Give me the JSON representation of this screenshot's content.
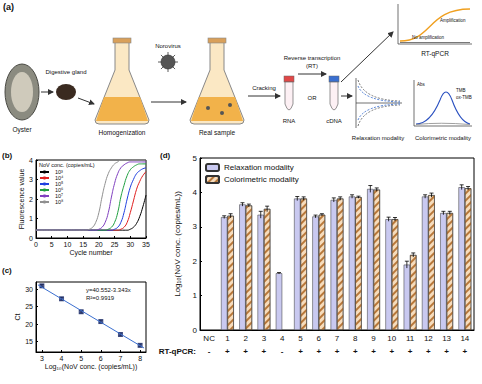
{
  "diagram": {
    "panel": "(a)",
    "labels": {
      "oyster": "Oyster",
      "gland": "Digestive gland",
      "virus": "Norovirus",
      "homogenization": "Homogenization",
      "sample": "Real sample",
      "cracking": "Cracking",
      "rt": [
        "Reverse transcription",
        "(RT)"
      ],
      "rna": "RNA",
      "or": "OR",
      "cdna": "cDNA",
      "qpcr": "RT-qPCR",
      "amp": "Amplification",
      "noamp": "No amplification",
      "relax": "Relaxation modality",
      "colorimetric": "Colorimetric modality",
      "abs": "Abs",
      "tmb": "TMB",
      "oxtmb": "ox-TMB"
    }
  },
  "chart_data": [
    {
      "type": "line",
      "title": "(b)",
      "x_label": "Cycle number",
      "y_label": "Fluorescence value",
      "legend_title": "NoV conc. (copies/mL)",
      "legend": "upper left",
      "grid": false,
      "x": [
        0,
        5,
        10,
        11,
        12,
        13,
        14,
        15,
        16,
        17,
        18,
        19,
        20,
        21,
        22,
        23,
        24,
        25,
        26,
        27,
        28,
        29,
        30,
        31,
        32,
        33,
        34,
        35
      ],
      "series": [
        {
          "name": "10³",
          "color": "#000000",
          "values": [
            0.4,
            0.4,
            0.4,
            0.4,
            0.4,
            0.4,
            0.4,
            0.4,
            0.4,
            0.4,
            0.4,
            0.4,
            0.4,
            0.4,
            0.4,
            0.4,
            0.4,
            0.4,
            0.4,
            0.4,
            0.4,
            0.4,
            0.45,
            0.55,
            0.75,
            1.1,
            1.6,
            2.2
          ]
        },
        {
          "name": "10⁴",
          "color": "#e02020",
          "values": [
            0.4,
            0.4,
            0.4,
            0.4,
            0.4,
            0.4,
            0.4,
            0.4,
            0.4,
            0.4,
            0.4,
            0.4,
            0.4,
            0.4,
            0.4,
            0.4,
            0.4,
            0.4,
            0.4,
            0.45,
            0.55,
            0.8,
            1.3,
            1.9,
            2.5,
            2.9,
            3.2,
            3.4
          ]
        },
        {
          "name": "10⁵",
          "color": "#2040e0",
          "values": [
            0.4,
            0.4,
            0.4,
            0.4,
            0.4,
            0.4,
            0.4,
            0.4,
            0.4,
            0.4,
            0.4,
            0.4,
            0.4,
            0.4,
            0.4,
            0.4,
            0.4,
            0.45,
            0.55,
            0.8,
            1.3,
            2.0,
            2.6,
            3.0,
            3.3,
            3.45,
            3.55,
            3.6
          ]
        },
        {
          "name": "10⁶",
          "color": "#20a040",
          "values": [
            0.4,
            0.4,
            0.4,
            0.4,
            0.4,
            0.4,
            0.4,
            0.4,
            0.4,
            0.4,
            0.4,
            0.4,
            0.4,
            0.4,
            0.4,
            0.45,
            0.55,
            0.8,
            1.3,
            2.1,
            2.7,
            3.2,
            3.5,
            3.65,
            3.75,
            3.8,
            3.8,
            3.8
          ]
        },
        {
          "name": "10⁷",
          "color": "#8040c0",
          "values": [
            0.4,
            0.4,
            0.4,
            0.4,
            0.4,
            0.4,
            0.4,
            0.4,
            0.4,
            0.4,
            0.4,
            0.4,
            0.45,
            0.55,
            0.8,
            1.3,
            2.1,
            2.8,
            3.3,
            3.6,
            3.75,
            3.85,
            3.9,
            3.9,
            3.9,
            3.9,
            3.9,
            3.9
          ]
        },
        {
          "name": "10⁸",
          "color": "#909090",
          "values": [
            0.4,
            0.4,
            0.4,
            0.4,
            0.4,
            0.4,
            0.4,
            0.4,
            0.4,
            0.45,
            0.55,
            0.8,
            1.3,
            2.1,
            2.8,
            3.3,
            3.6,
            3.8,
            3.9,
            4.0,
            4.0,
            4.0,
            4.0,
            4.0,
            4.0,
            4.0,
            4.0,
            4.0
          ]
        }
      ],
      "xlim": [
        0,
        35
      ],
      "xticks": [
        0,
        5,
        10,
        15,
        20,
        25,
        30,
        35
      ],
      "ylim": [
        0,
        4
      ],
      "yticks": [
        0,
        1,
        2,
        3,
        4
      ]
    },
    {
      "type": "scatter",
      "title": "(c)",
      "x_label": "Log₁₀(NoV conc. (copies/mL))",
      "y_label": "Ct",
      "grid": false,
      "marker": "square",
      "color": "#1f2f6f",
      "x": [
        3,
        4,
        5,
        6,
        7,
        8
      ],
      "values": [
        30.9,
        27.2,
        23.5,
        20.7,
        17.0,
        13.9
      ],
      "errors": [
        0.4,
        0.4,
        0.4,
        0.4,
        0.4,
        0.4
      ],
      "fit": {
        "color": "#3b6fd0",
        "x": [
          2.8,
          8.2
        ],
        "values": [
          31.19,
          13.14
        ]
      },
      "annotations": [
        "y=40.552-3.343x",
        "R²=0.9919"
      ],
      "xlim": [
        2.7,
        8.3
      ],
      "xticks": [
        3,
        4,
        5,
        6,
        7,
        8
      ],
      "ylim": [
        12,
        32
      ],
      "yticks": [
        15,
        20,
        25,
        30
      ]
    },
    {
      "type": "bar",
      "title": "(d)",
      "y_label": "Log₁₀(NoV conc. (copies/mL))",
      "legend": "upper left",
      "grid": false,
      "categories": [
        "NC",
        "1",
        "2",
        "3",
        "4",
        "5",
        "6",
        "7",
        "8",
        "9",
        "10",
        "11",
        "12",
        "13",
        "14"
      ],
      "series": [
        {
          "name": "Relaxation modality",
          "color": "#c9c9f0",
          "values": [
            null,
            3.28,
            3.65,
            3.35,
            1.65,
            3.82,
            3.3,
            3.78,
            3.88,
            4.1,
            3.22,
            1.9,
            3.88,
            3.4,
            4.15
          ],
          "errors": [
            null,
            0.04,
            0.05,
            0.1,
            0.02,
            0.06,
            0.04,
            0.06,
            0.05,
            0.1,
            0.06,
            0.1,
            0.05,
            0.05,
            0.07
          ]
        },
        {
          "name": "Colorimetric modality",
          "color": "#f6dcbc",
          "values": [
            null,
            3.32,
            3.62,
            3.52,
            null,
            3.82,
            3.35,
            3.82,
            3.86,
            4.08,
            3.22,
            2.18,
            3.92,
            3.4,
            4.12
          ],
          "errors": [
            null,
            0.06,
            0.04,
            0.08,
            null,
            0.05,
            0.03,
            0.05,
            0.03,
            0.05,
            0.05,
            0.06,
            0.06,
            0.05,
            0.05
          ]
        }
      ],
      "rt_qpcr": {
        "label": "RT-qPCR:",
        "signs": [
          "-",
          "+",
          "+",
          "+",
          "-",
          "+",
          "+",
          "+",
          "+",
          "+",
          "+",
          "+",
          "+",
          "+",
          "+"
        ]
      },
      "ylim": [
        0,
        5
      ],
      "yticks": [
        0,
        1,
        2,
        3,
        4,
        5
      ]
    }
  ]
}
